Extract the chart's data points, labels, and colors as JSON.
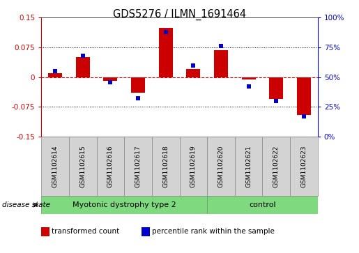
{
  "title": "GDS5276 / ILMN_1691464",
  "samples": [
    "GSM1102614",
    "GSM1102615",
    "GSM1102616",
    "GSM1102617",
    "GSM1102618",
    "GSM1102619",
    "GSM1102620",
    "GSM1102621",
    "GSM1102622",
    "GSM1102623"
  ],
  "transformed_count": [
    0.01,
    0.05,
    -0.01,
    -0.04,
    0.125,
    0.02,
    0.068,
    -0.005,
    -0.055,
    -0.095
  ],
  "percentile_rank": [
    55,
    68,
    46,
    32,
    88,
    60,
    76,
    42,
    30,
    17
  ],
  "groups": [
    {
      "label": "Myotonic dystrophy type 2",
      "start": 0,
      "end": 6
    },
    {
      "label": "control",
      "start": 6,
      "end": 10
    }
  ],
  "ylim_left": [
    -0.15,
    0.15
  ],
  "ylim_right": [
    0,
    100
  ],
  "left_yticks": [
    -0.15,
    -0.075,
    0,
    0.075,
    0.15
  ],
  "right_yticks": [
    0,
    25,
    50,
    75,
    100
  ],
  "left_color": "#CC0000",
  "right_color": "#0000CC",
  "bar_color": "#CC0000",
  "dot_color": "#0000CC",
  "zero_line_color": "#CC0000",
  "grid_color": "#000000",
  "sample_box_color": "#D3D3D3",
  "group_color": "#7FD97F",
  "legend_items": [
    {
      "label": "transformed count",
      "color": "#CC0000"
    },
    {
      "label": "percentile rank within the sample",
      "color": "#0000CC"
    }
  ],
  "disease_state_label": "disease state"
}
